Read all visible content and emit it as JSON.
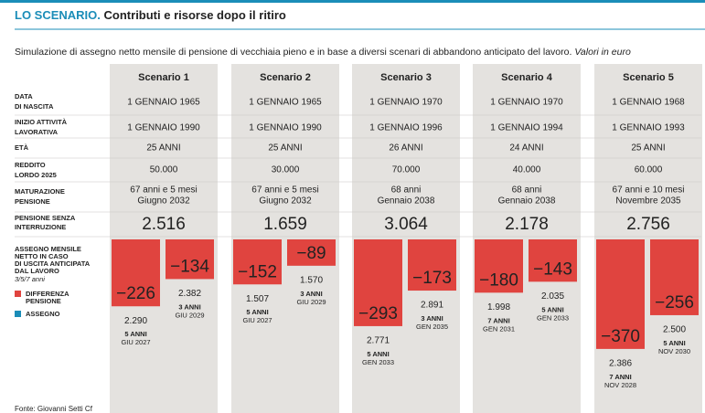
{
  "header": {
    "title_lead": "LO SCENARIO.",
    "title": "Contributi e risorse dopo il ritiro",
    "subtitle": "Simulazione di assegno netto mensile di pensione di vecchiaia pieno e in base a diversi scenari di abbandono anticipato del lavoro.",
    "subtitle_note": "Valori in euro"
  },
  "row_labels": [
    [
      "DATA",
      "DI NASCITA"
    ],
    [
      "INIZIO ATTIVITÀ",
      "LAVORATIVA"
    ],
    [
      "ETÀ"
    ],
    [
      "REDDITO",
      "LORDO 2025"
    ],
    [
      "MATURAZIONE",
      "PENSIONE"
    ],
    [
      "PENSIONE SENZA",
      "INTERRUZIONE"
    ]
  ],
  "exit_label": [
    "ASSEGNO MENSILE",
    "NETTO IN CASO",
    "DI USCITA ANTICIPATA",
    "DAL LAVORO"
  ],
  "exit_years": "3/5/7 anni",
  "legend": [
    {
      "name": [
        "DIFFERENZA",
        "PENSIONE"
      ],
      "color": "#e0443f"
    },
    {
      "name": [
        "ASSEGNO"
      ],
      "color": "#1b8db8"
    }
  ],
  "scenarios": [
    {
      "name": "Scenario 1",
      "birth": "1 GENNAIO 1965",
      "start": "1 GENNAIO 1990",
      "age": "25 ANNI",
      "income": "50.000",
      "maturation": [
        "67 anni e 5 mesi",
        "Giugno 2032"
      ],
      "pension": "2.516",
      "exits": [
        {
          "difference": -226,
          "difference_label": "−226",
          "allowance": "2.290",
          "years": "5 ANNI",
          "date": "GIU 2027"
        },
        {
          "difference": -134,
          "difference_label": "−134",
          "allowance": "2.382",
          "years": "3 ANNI",
          "date": "GIU 2029"
        }
      ]
    },
    {
      "name": "Scenario 2",
      "birth": "1 GENNAIO 1965",
      "start": "1 GENNAIO 1990",
      "age": "25 ANNI",
      "income": "30.000",
      "maturation": [
        "67 anni e 5 mesi",
        "Giugno 2032"
      ],
      "pension": "1.659",
      "exits": [
        {
          "difference": -152,
          "difference_label": "−152",
          "allowance": "1.507",
          "years": "5 ANNI",
          "date": "GIU 2027"
        },
        {
          "difference": -89,
          "difference_label": "−89",
          "allowance": "1.570",
          "years": "3 ANNI",
          "date": "GIU 2029"
        }
      ]
    },
    {
      "name": "Scenario 3",
      "birth": "1 GENNAIO 1970",
      "start": "1 GENNAIO 1996",
      "age": "26 ANNI",
      "income": "70.000",
      "maturation": [
        "68 anni",
        "Gennaio 2038"
      ],
      "pension": "3.064",
      "exits": [
        {
          "difference": -293,
          "difference_label": "−293",
          "allowance": "2.771",
          "years": "5 ANNI",
          "date": "GEN 2033"
        },
        {
          "difference": -173,
          "difference_label": "−173",
          "allowance": "2.891",
          "years": "3 ANNI",
          "date": "GEN 2035"
        }
      ]
    },
    {
      "name": "Scenario 4",
      "birth": "1 GENNAIO 1970",
      "start": "1 GENNAIO 1994",
      "age": "24 ANNI",
      "income": "40.000",
      "maturation": [
        "68 anni",
        "Gennaio 2038"
      ],
      "pension": "2.178",
      "exits": [
        {
          "difference": -180,
          "difference_label": "−180",
          "allowance": "1.998",
          "years": "7 ANNI",
          "date": "GEN 2031"
        },
        {
          "difference": -143,
          "difference_label": "−143",
          "allowance": "2.035",
          "years": "5 ANNI",
          "date": "GEN 2033"
        }
      ]
    },
    {
      "name": "Scenario 5",
      "birth": "1 GENNAIO 1968",
      "start": "1 GENNAIO 1993",
      "age": "25 ANNI",
      "income": "60.000",
      "maturation": [
        "67 anni e 10 mesi",
        "Novembre 2035"
      ],
      "pension": "2.756",
      "exits": [
        {
          "difference": -370,
          "difference_label": "−370",
          "allowance": "2.386",
          "years": "7 ANNI",
          "date": "NOV 2028"
        },
        {
          "difference": -256,
          "difference_label": "−256",
          "allowance": "2.500",
          "years": "5 ANNI",
          "date": "NOV 2030"
        }
      ]
    }
  ],
  "source": "Fonte: Giovanni Setti Cf"
}
